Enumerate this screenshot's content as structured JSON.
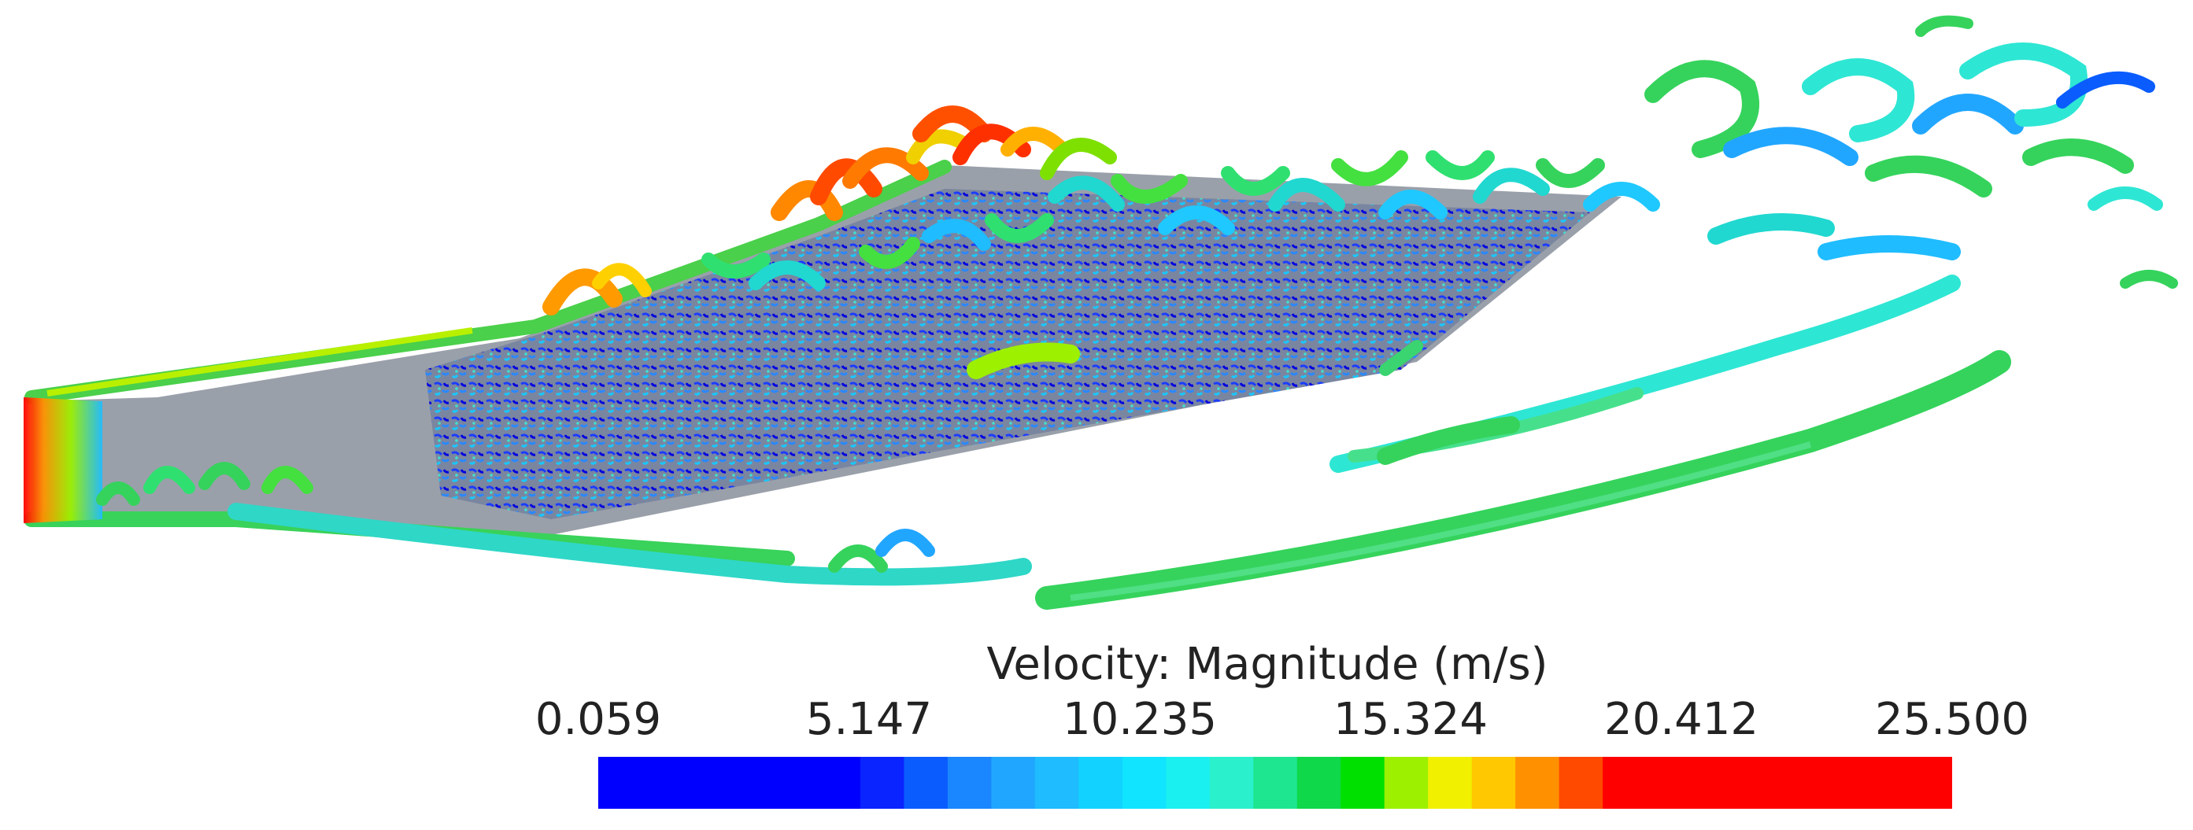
{
  "legend": {
    "title": "Velocity: Magnitude (m/s)",
    "ticks": [
      "0.059",
      "5.147",
      "10.235",
      "15.324",
      "20.412",
      "25.500"
    ],
    "colors": [
      "#0000ff",
      "#0000ff",
      "#0000ff",
      "#0000ff",
      "#0000ff",
      "#0000ff",
      "#0a24ff",
      "#0a5cff",
      "#1a86ff",
      "#21a6ff",
      "#1fbcff",
      "#12d2ff",
      "#10e4ff",
      "#1af0f0",
      "#2af0cc",
      "#1ee690",
      "#0fd84a",
      "#00e000",
      "#9cf000",
      "#f0f000",
      "#ffc800",
      "#ff9000",
      "#ff4a00",
      "#ff0000",
      "#ff0000",
      "#ff0000",
      "#ff0000",
      "#ff0000",
      "#ff0000",
      "#ff0000",
      "#ff0000"
    ]
  }
}
